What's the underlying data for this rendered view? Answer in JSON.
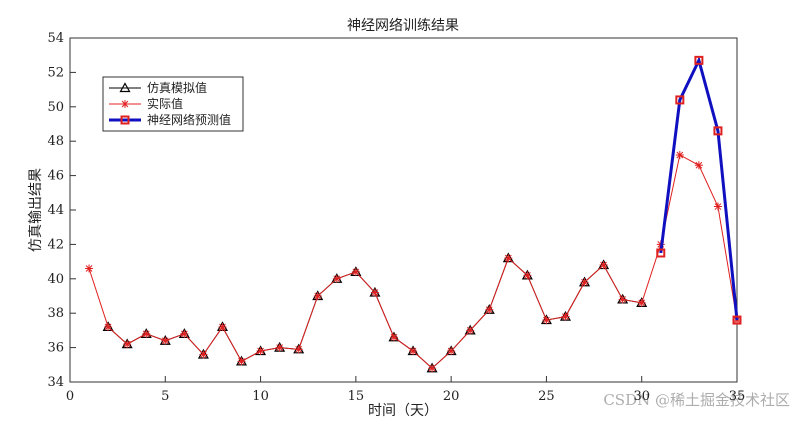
{
  "chart_data": {
    "type": "line",
    "title": "神经网络训练结果",
    "xlabel": "时间（天）",
    "ylabel": "仿真输出结果",
    "xlim": [
      0,
      35
    ],
    "xticks": [
      0,
      5,
      10,
      15,
      20,
      25,
      30,
      35
    ],
    "ylim": [
      34,
      54
    ],
    "yticks": [
      34,
      36,
      38,
      40,
      42,
      44,
      46,
      48,
      50,
      52,
      54
    ],
    "legend": "upper left",
    "watermark": "CSDN @稀土掘金技术社区",
    "series": [
      {
        "name": "仿真模拟值",
        "color": "#000000",
        "marker": "triangle",
        "x": [
          2,
          3,
          4,
          5,
          6,
          7,
          8,
          9,
          10,
          11,
          12,
          13,
          14,
          15,
          16,
          17,
          18,
          19,
          20,
          21,
          22,
          23,
          24,
          25,
          26,
          27,
          28,
          29,
          30
        ],
        "values": [
          37.2,
          36.2,
          36.8,
          36.4,
          36.8,
          35.6,
          37.2,
          35.2,
          35.8,
          36.0,
          35.9,
          39.0,
          40.0,
          40.4,
          39.2,
          36.6,
          35.8,
          34.8,
          35.8,
          37.0,
          38.2,
          41.2,
          40.2,
          37.6,
          37.8,
          39.8,
          40.8,
          38.8,
          38.6
        ]
      },
      {
        "name": "实际值",
        "color": "#e02020",
        "marker": "asterisk",
        "x": [
          1,
          2,
          3,
          4,
          5,
          6,
          7,
          8,
          9,
          10,
          11,
          12,
          13,
          14,
          15,
          16,
          17,
          18,
          19,
          20,
          21,
          22,
          23,
          24,
          25,
          26,
          27,
          28,
          29,
          30,
          31,
          32,
          33,
          34,
          35
        ],
        "values": [
          40.6,
          37.2,
          36.2,
          36.8,
          36.4,
          36.8,
          35.6,
          37.2,
          35.2,
          35.8,
          36.0,
          35.9,
          39.0,
          40.0,
          40.4,
          39.2,
          36.6,
          35.8,
          34.8,
          35.8,
          37.0,
          38.2,
          41.2,
          40.2,
          37.6,
          37.8,
          39.8,
          40.8,
          38.8,
          38.6,
          42.0,
          47.2,
          46.6,
          44.2,
          37.6
        ]
      },
      {
        "name": "神经网络预测值",
        "color": "#1010c0",
        "marker": "square",
        "x": [
          31,
          32,
          33,
          34,
          35
        ],
        "values": [
          41.5,
          50.4,
          52.7,
          48.6,
          37.6
        ]
      }
    ]
  }
}
